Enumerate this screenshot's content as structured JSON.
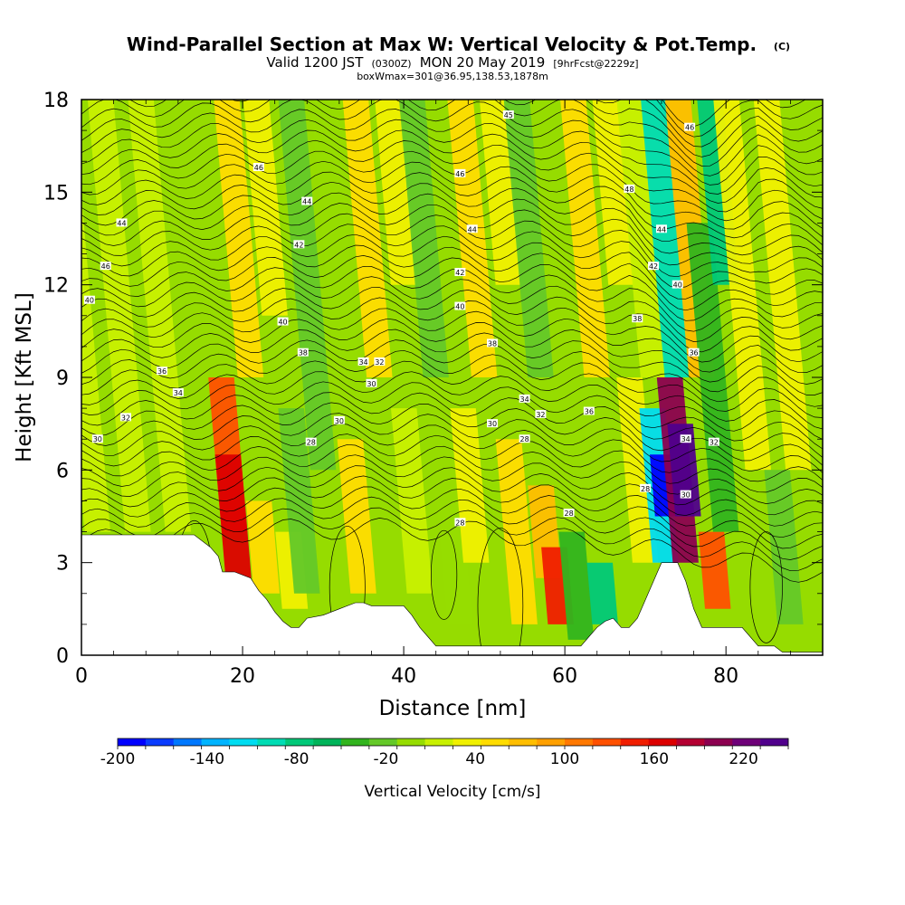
{
  "chart_data": {
    "type": "heatmap",
    "title": "Wind-Parallel Section at Max W: Vertical Velocity & Pot.Temp.",
    "title_tag": "(C)",
    "subtitle_valid": "Valid 1200 JST",
    "subtitle_utc": "(0300Z)",
    "subtitle_date": "MON 20 May 2019",
    "subtitle_fcst": "[9hrFcst@2229z]",
    "subtitle_box": "boxWmax=301@36.95,138.53,1878m",
    "xlabel": "Distance [nm]",
    "ylabel": "Height [Kft MSL]",
    "xlim": [
      0,
      92
    ],
    "ylim": [
      0,
      18
    ],
    "x_ticks": [
      0,
      20,
      40,
      60,
      80
    ],
    "y_ticks": [
      0,
      3,
      6,
      9,
      12,
      15,
      18
    ],
    "colorbar": {
      "title": "Vertical Velocity [cm/s]",
      "min": -200,
      "max": 250,
      "tick_values": [
        -200,
        -140,
        -80,
        -20,
        40,
        100,
        160,
        220
      ],
      "tick_labels": [
        "-200",
        "-140",
        "-80",
        "-20",
        "40",
        "100",
        "160",
        "220"
      ],
      "colors": [
        "#0000ff",
        "#0a3cff",
        "#0078ff",
        "#00b4ff",
        "#00dcf0",
        "#00dcb4",
        "#00c878",
        "#00b45a",
        "#32b41e",
        "#64c828",
        "#96dc00",
        "#c8f000",
        "#f0f000",
        "#ffdc00",
        "#ffbe00",
        "#ffa000",
        "#ff7800",
        "#ff5000",
        "#f01e00",
        "#dc0000",
        "#b40032",
        "#8c0050",
        "#6e0078",
        "#50008c"
      ]
    },
    "terrain": [
      [
        0,
        3.9
      ],
      [
        4,
        3.9
      ],
      [
        8,
        3.9
      ],
      [
        12,
        3.9
      ],
      [
        14,
        3.9
      ],
      [
        16,
        3.5
      ],
      [
        17,
        3.2
      ],
      [
        17.5,
        2.7
      ],
      [
        19,
        2.7
      ],
      [
        21,
        2.5
      ],
      [
        22,
        2.1
      ],
      [
        23,
        1.8
      ],
      [
        24,
        1.4
      ],
      [
        25,
        1.1
      ],
      [
        26,
        0.9
      ],
      [
        27,
        0.9
      ],
      [
        28,
        1.2
      ],
      [
        30,
        1.3
      ],
      [
        32,
        1.5
      ],
      [
        34,
        1.7
      ],
      [
        35,
        1.7
      ],
      [
        36,
        1.6
      ],
      [
        38,
        1.6
      ],
      [
        40,
        1.6
      ],
      [
        41,
        1.3
      ],
      [
        42,
        0.9
      ],
      [
        43,
        0.6
      ],
      [
        44,
        0.3
      ],
      [
        46,
        0.3
      ],
      [
        50,
        0.3
      ],
      [
        54,
        0.3
      ],
      [
        58,
        0.3
      ],
      [
        60,
        0.3
      ],
      [
        62,
        0.3
      ],
      [
        63,
        0.6
      ],
      [
        64,
        0.9
      ],
      [
        65,
        1.1
      ],
      [
        66,
        1.2
      ],
      [
        67,
        0.9
      ],
      [
        68,
        0.9
      ],
      [
        69,
        1.2
      ],
      [
        70,
        1.8
      ],
      [
        71,
        2.4
      ],
      [
        72,
        3.0
      ],
      [
        74,
        3.0
      ],
      [
        75,
        2.4
      ],
      [
        76,
        1.5
      ],
      [
        77,
        0.9
      ],
      [
        80,
        0.9
      ],
      [
        82,
        0.9
      ],
      [
        83,
        0.6
      ],
      [
        84,
        0.3
      ],
      [
        86,
        0.3
      ],
      [
        87,
        0.1
      ],
      [
        92,
        0.1
      ]
    ],
    "cells": [
      {
        "x": 2,
        "ylo": 4,
        "yhi": 18,
        "w": 15
      },
      {
        "x": 7,
        "ylo": 4,
        "yhi": 18,
        "w": 10
      },
      {
        "x": 12,
        "ylo": 4,
        "yhi": 18,
        "w": 15
      },
      {
        "x": 19,
        "ylo": 4,
        "yhi": 9,
        "w": 120
      },
      {
        "x": 19.5,
        "ylo": 2.5,
        "yhi": 6.5,
        "w": 170
      },
      {
        "x": 21,
        "ylo": 9,
        "yhi": 18,
        "w": 60
      },
      {
        "x": 24,
        "ylo": 11,
        "yhi": 18,
        "w": 30
      },
      {
        "x": 23,
        "ylo": 2,
        "yhi": 5,
        "w": 60
      },
      {
        "x": 26.5,
        "ylo": 1.5,
        "yhi": 4,
        "w": 40
      },
      {
        "x": 28,
        "ylo": 2,
        "yhi": 8,
        "w": -20
      },
      {
        "x": 30,
        "ylo": 6,
        "yhi": 18,
        "w": -25
      },
      {
        "x": 33,
        "ylo": 9,
        "yhi": 18,
        "w": -10
      },
      {
        "x": 35,
        "ylo": 2,
        "yhi": 7,
        "w": 50
      },
      {
        "x": 37,
        "ylo": 9,
        "yhi": 18,
        "w": 50
      },
      {
        "x": 40,
        "ylo": 12,
        "yhi": 18,
        "w": 40
      },
      {
        "x": 42,
        "ylo": 2,
        "yhi": 8,
        "w": 20
      },
      {
        "x": 44,
        "ylo": 9,
        "yhi": 18,
        "w": -25
      },
      {
        "x": 47,
        "ylo": 1,
        "yhi": 5,
        "w": -10
      },
      {
        "x": 49,
        "ylo": 3,
        "yhi": 8,
        "w": 35
      },
      {
        "x": 50,
        "ylo": 9,
        "yhi": 18,
        "w": 50
      },
      {
        "x": 53,
        "ylo": 12,
        "yhi": 18,
        "w": 40
      },
      {
        "x": 55,
        "ylo": 1,
        "yhi": 7,
        "w": 50
      },
      {
        "x": 58,
        "ylo": 2.5,
        "yhi": 5.5,
        "w": 80
      },
      {
        "x": 59.5,
        "ylo": 1,
        "yhi": 3.5,
        "w": 150
      },
      {
        "x": 57,
        "ylo": 9,
        "yhi": 18,
        "w": -30
      },
      {
        "x": 62,
        "ylo": 0.5,
        "yhi": 4,
        "w": -50
      },
      {
        "x": 65,
        "ylo": 1,
        "yhi": 3,
        "w": -80
      },
      {
        "x": 64,
        "ylo": 9,
        "yhi": 18,
        "w": 50
      },
      {
        "x": 67,
        "ylo": 12,
        "yhi": 18,
        "w": 40
      },
      {
        "x": 70,
        "ylo": 3,
        "yhi": 9,
        "w": 30
      },
      {
        "x": 71,
        "ylo": 9,
        "yhi": 18,
        "w": 20
      },
      {
        "x": 72.5,
        "ylo": 3,
        "yhi": 8,
        "w": -120
      },
      {
        "x": 72.8,
        "ylo": 4.5,
        "yhi": 6.5,
        "w": -190
      },
      {
        "x": 74,
        "ylo": 9,
        "yhi": 18,
        "w": -100
      },
      {
        "x": 75,
        "ylo": 3,
        "yhi": 9,
        "w": 200
      },
      {
        "x": 75.3,
        "ylo": 4.5,
        "yhi": 7.5,
        "w": 240
      },
      {
        "x": 77,
        "ylo": 9,
        "yhi": 18,
        "w": 70
      },
      {
        "x": 79,
        "ylo": 1.5,
        "yhi": 4,
        "w": 120
      },
      {
        "x": 80,
        "ylo": 4,
        "yhi": 14,
        "w": -40
      },
      {
        "x": 80,
        "ylo": 12,
        "yhi": 18,
        "w": -80
      },
      {
        "x": 84,
        "ylo": 6,
        "yhi": 18,
        "w": 40
      },
      {
        "x": 88,
        "ylo": 1,
        "yhi": 6,
        "w": -30
      },
      {
        "x": 89,
        "ylo": 6,
        "yhi": 18,
        "w": 30
      }
    ],
    "contour_labels": [
      {
        "x": 22,
        "y": 15.8,
        "t": "46"
      },
      {
        "x": 28,
        "y": 14.7,
        "t": "44"
      },
      {
        "x": 5,
        "y": 14,
        "t": "44"
      },
      {
        "x": 27,
        "y": 13.3,
        "t": "42"
      },
      {
        "x": 3,
        "y": 12.6,
        "t": "46"
      },
      {
        "x": 1,
        "y": 11.5,
        "t": "40"
      },
      {
        "x": 25,
        "y": 10.8,
        "t": "40"
      },
      {
        "x": 27.5,
        "y": 9.8,
        "t": "38"
      },
      {
        "x": 10,
        "y": 9.2,
        "t": "36"
      },
      {
        "x": 12,
        "y": 8.5,
        "t": "34"
      },
      {
        "x": 35,
        "y": 9.5,
        "t": "34"
      },
      {
        "x": 37,
        "y": 9.5,
        "t": "32"
      },
      {
        "x": 36,
        "y": 8.8,
        "t": "30"
      },
      {
        "x": 5.5,
        "y": 7.7,
        "t": "32"
      },
      {
        "x": 2,
        "y": 7,
        "t": "30"
      },
      {
        "x": 32,
        "y": 7.6,
        "t": "30"
      },
      {
        "x": 28.5,
        "y": 6.9,
        "t": "28"
      },
      {
        "x": 53,
        "y": 17.5,
        "t": "45"
      },
      {
        "x": 47,
        "y": 15.6,
        "t": "46"
      },
      {
        "x": 48.5,
        "y": 13.8,
        "t": "44"
      },
      {
        "x": 47,
        "y": 12.4,
        "t": "42"
      },
      {
        "x": 47,
        "y": 11.3,
        "t": "40"
      },
      {
        "x": 51,
        "y": 10.1,
        "t": "38"
      },
      {
        "x": 55,
        "y": 8.3,
        "t": "34"
      },
      {
        "x": 57,
        "y": 7.8,
        "t": "32"
      },
      {
        "x": 51,
        "y": 7.5,
        "t": "30"
      },
      {
        "x": 55,
        "y": 7.0,
        "t": "28"
      },
      {
        "x": 63,
        "y": 7.9,
        "t": "36"
      },
      {
        "x": 47,
        "y": 4.3,
        "t": "28"
      },
      {
        "x": 60.5,
        "y": 4.6,
        "t": "28"
      },
      {
        "x": 75.5,
        "y": 17.1,
        "t": "46"
      },
      {
        "x": 68,
        "y": 15.1,
        "t": "48"
      },
      {
        "x": 72,
        "y": 13.8,
        "t": "44"
      },
      {
        "x": 71,
        "y": 12.6,
        "t": "42"
      },
      {
        "x": 74,
        "y": 12.0,
        "t": "40"
      },
      {
        "x": 69,
        "y": 10.9,
        "t": "38"
      },
      {
        "x": 76,
        "y": 9.8,
        "t": "36"
      },
      {
        "x": 75,
        "y": 7.0,
        "t": "34"
      },
      {
        "x": 78.5,
        "y": 6.9,
        "t": "32"
      },
      {
        "x": 70,
        "y": 5.4,
        "t": "28"
      },
      {
        "x": 75,
        "y": 5.2,
        "t": "30"
      }
    ]
  }
}
